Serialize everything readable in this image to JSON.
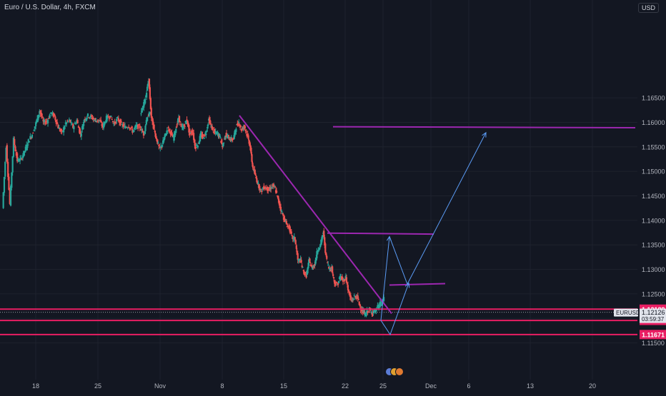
{
  "header": {
    "title": "Euro / U.S. Dollar, 4h, FXCM",
    "currency": "USD"
  },
  "colors": {
    "background": "#131722",
    "grid": "#1e222d",
    "bull": "#26a69a",
    "bear": "#ef5350",
    "trendline": "#9c27b0",
    "level": "#e91e63",
    "projection": "#5b9cf6",
    "label_bg": "#e91e63",
    "price_tag_bg": "#e0e3eb"
  },
  "chart_data": {
    "type": "candlestick",
    "symbol": "EURUSD",
    "timeframe": "4h",
    "x_ticks": [
      "18",
      "25",
      "Nov",
      "8",
      "15",
      "22",
      "25",
      "Dec",
      "6",
      "13",
      "20"
    ],
    "y_ticks": [
      "1.16500",
      "1.16000",
      "1.15500",
      "1.15000",
      "1.14500",
      "1.14000",
      "1.13500",
      "1.13000",
      "1.12500",
      "1.12000",
      "1.11500"
    ],
    "ylim": [
      1.1465,
      1.168
    ],
    "current_price": {
      "symbol": "EURUSD",
      "price": "1.12126",
      "countdown": "03:59:37"
    },
    "levels": [
      {
        "label": "1.12189",
        "value": 1.12189
      },
      {
        "label": "1.11959",
        "value": 1.11959
      },
      {
        "label": "1.11671",
        "value": 1.11671
      }
    ],
    "segments": [
      [
        1.1425,
        1.1552,
        1.1433,
        1.1565,
        1.1522,
        1.1525,
        1.1542,
        1.1562,
        1.1576,
        1.1598,
        1.1624,
        1.16,
        1.1602,
        1.162,
        1.1612,
        1.159,
        1.1578,
        1.1598,
        1.1604,
        1.159,
        1.1604,
        1.1574,
        1.1606,
        1.1614,
        1.161,
        1.1604,
        1.1604,
        1.1591,
        1.1609,
        1.1613,
        1.1597,
        1.1607,
        1.1596,
        1.159,
        1.1593,
        1.1582,
        1.1592,
        1.159,
        1.1576,
        1.1614,
        1.1618
      ],
      [
        1.1618,
        1.1632,
        1.1654,
        1.1687,
        1.161,
        1.1585,
        1.1564,
        1.1545,
        1.1555,
        1.1573,
        1.1587,
        1.158,
        1.1567,
        1.1588,
        1.161,
        1.1588,
        1.1593,
        1.1606,
        1.1575,
        1.1583,
        1.155,
        1.1554,
        1.1574,
        1.157,
        1.158,
        1.1606,
        1.159,
        1.1579,
        1.1578,
        1.1572,
        1.155,
        1.1575,
        1.157,
        1.1565,
        1.1566,
        1.1591,
        1.16,
        1.1585,
        1.1593,
        1.1574,
        1.1555
      ],
      [
        1.1555,
        1.151,
        1.149,
        1.1473,
        1.1459,
        1.1468,
        1.1465,
        1.1462,
        1.1471,
        1.1465,
        1.1442,
        1.1423,
        1.1405,
        1.1392,
        1.1384,
        1.1364,
        1.1363,
        1.1318,
        1.1318,
        1.1295,
        1.1287,
        1.1318,
        1.1302,
        1.1312,
        1.134,
        1.135,
        1.1376,
        1.1325,
        1.1302,
        1.1302,
        1.1272,
        1.1268,
        1.1286,
        1.1276,
        1.1284,
        1.1252,
        1.1235,
        1.1244,
        1.1244,
        1.1225,
        1.1213,
        1.1208,
        1.1218,
        1.1213,
        1.1213
      ],
      [
        1.1213,
        1.1226,
        1.1241
      ]
    ],
    "trendlines": [
      {
        "kind": "trendline",
        "x1": 335,
        "y1": 1.1614,
        "x2": 548,
        "y2": 1.121
      },
      {
        "kind": "horizontal",
        "x1": 458,
        "y1": 1.1374,
        "x2": 607,
        "y2": 1.1372
      },
      {
        "kind": "horizontal",
        "x1": 545,
        "y1": 1.1268,
        "x2": 623,
        "y2": 1.1271
      },
      {
        "kind": "horizontal",
        "x1": 466,
        "y1": 1.1591,
        "x2": 889,
        "y2": 1.1589
      }
    ],
    "projection": [
      {
        "x": 533,
        "y": 1.1196
      },
      {
        "x": 545,
        "y": 1.1367
      },
      {
        "x": 570,
        "y": 1.127
      },
      {
        "x": 680,
        "y": 1.1579
      }
    ],
    "projection_alt": [
      {
        "x": 533,
        "y": 1.1196
      },
      {
        "x": 546,
        "y": 1.1167
      },
      {
        "x": 572,
        "y": 1.1272
      }
    ],
    "logo": "tradingview-logo"
  }
}
